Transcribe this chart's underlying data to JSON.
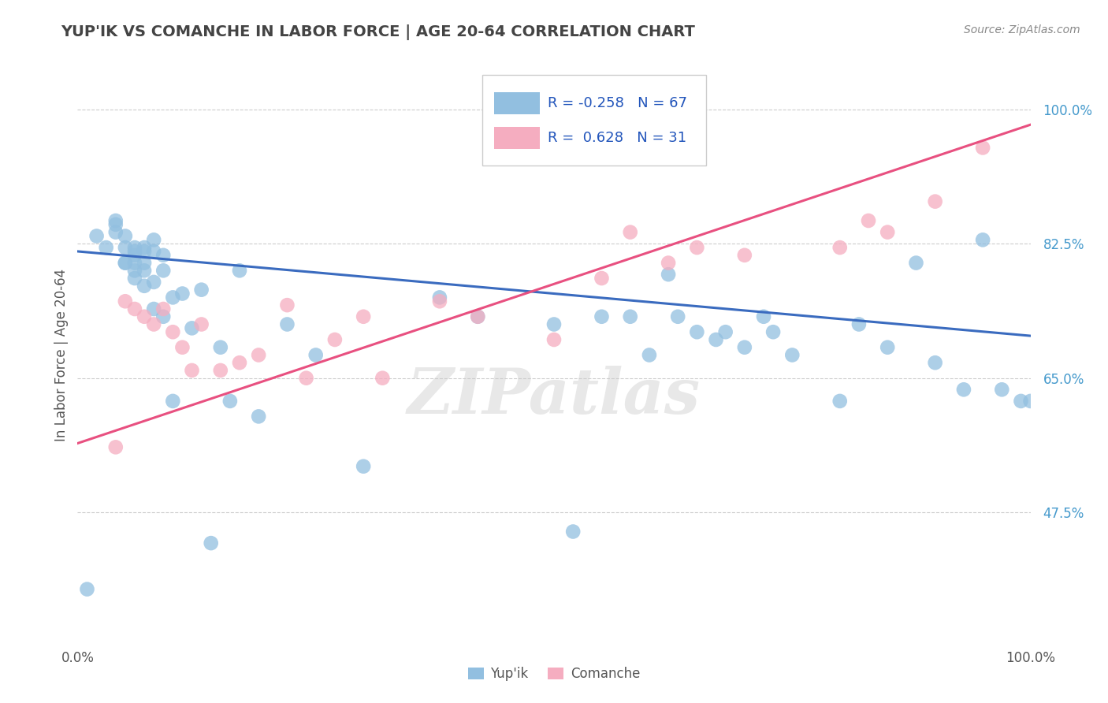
{
  "title": "YUP'IK VS COMANCHE IN LABOR FORCE | AGE 20-64 CORRELATION CHART",
  "source": "Source: ZipAtlas.com",
  "ylabel": "In Labor Force | Age 20-64",
  "xlim": [
    0.0,
    1.0
  ],
  "ylim": [
    0.3,
    1.06
  ],
  "yticks": [
    0.475,
    0.65,
    0.825,
    1.0
  ],
  "ytick_labels": [
    "47.5%",
    "65.0%",
    "82.5%",
    "100.0%"
  ],
  "xtick_labels": [
    "0.0%",
    "100.0%"
  ],
  "R_yupik": -0.258,
  "N_yupik": 67,
  "R_comanche": 0.628,
  "N_comanche": 31,
  "yupik_color": "#92bfe0",
  "comanche_color": "#f5adc0",
  "yupik_line_color": "#3a6bbf",
  "comanche_line_color": "#e85080",
  "watermark": "ZIPatlas",
  "background_color": "#ffffff",
  "grid_color": "#cccccc",
  "title_color": "#444444",
  "label_color": "#555555",
  "tick_color": "#4499cc",
  "yupik_x": [
    0.01,
    0.02,
    0.03,
    0.04,
    0.04,
    0.04,
    0.05,
    0.05,
    0.05,
    0.05,
    0.06,
    0.06,
    0.06,
    0.06,
    0.06,
    0.06,
    0.07,
    0.07,
    0.07,
    0.07,
    0.07,
    0.08,
    0.08,
    0.08,
    0.08,
    0.09,
    0.09,
    0.09,
    0.1,
    0.1,
    0.11,
    0.12,
    0.13,
    0.14,
    0.15,
    0.16,
    0.17,
    0.19,
    0.22,
    0.25,
    0.3,
    0.38,
    0.42,
    0.5,
    0.52,
    0.55,
    0.58,
    0.6,
    0.62,
    0.63,
    0.65,
    0.67,
    0.68,
    0.7,
    0.72,
    0.73,
    0.75,
    0.8,
    0.82,
    0.85,
    0.88,
    0.9,
    0.93,
    0.95,
    0.97,
    0.99,
    1.0
  ],
  "yupik_y": [
    0.375,
    0.835,
    0.82,
    0.84,
    0.855,
    0.85,
    0.8,
    0.82,
    0.835,
    0.8,
    0.81,
    0.815,
    0.8,
    0.79,
    0.82,
    0.78,
    0.8,
    0.79,
    0.815,
    0.77,
    0.82,
    0.83,
    0.775,
    0.74,
    0.815,
    0.79,
    0.73,
    0.81,
    0.755,
    0.62,
    0.76,
    0.715,
    0.765,
    0.435,
    0.69,
    0.62,
    0.79,
    0.6,
    0.72,
    0.68,
    0.535,
    0.755,
    0.73,
    0.72,
    0.45,
    0.73,
    0.73,
    0.68,
    0.785,
    0.73,
    0.71,
    0.7,
    0.71,
    0.69,
    0.73,
    0.71,
    0.68,
    0.62,
    0.72,
    0.69,
    0.8,
    0.67,
    0.635,
    0.83,
    0.635,
    0.62,
    0.62
  ],
  "comanche_x": [
    0.04,
    0.05,
    0.06,
    0.07,
    0.08,
    0.09,
    0.1,
    0.11,
    0.12,
    0.13,
    0.15,
    0.17,
    0.19,
    0.22,
    0.24,
    0.27,
    0.3,
    0.32,
    0.38,
    0.42,
    0.5,
    0.55,
    0.58,
    0.62,
    0.65,
    0.7,
    0.8,
    0.83,
    0.85,
    0.9,
    0.95
  ],
  "comanche_y": [
    0.56,
    0.75,
    0.74,
    0.73,
    0.72,
    0.74,
    0.71,
    0.69,
    0.66,
    0.72,
    0.66,
    0.67,
    0.68,
    0.745,
    0.65,
    0.7,
    0.73,
    0.65,
    0.75,
    0.73,
    0.7,
    0.78,
    0.84,
    0.8,
    0.82,
    0.81,
    0.82,
    0.855,
    0.84,
    0.88,
    0.95
  ],
  "yupik_trend_x0": 0.0,
  "yupik_trend_y0": 0.815,
  "yupik_trend_x1": 1.0,
  "yupik_trend_y1": 0.705,
  "comanche_trend_x0": 0.0,
  "comanche_trend_y0": 0.565,
  "comanche_trend_x1": 1.0,
  "comanche_trend_y1": 0.98
}
